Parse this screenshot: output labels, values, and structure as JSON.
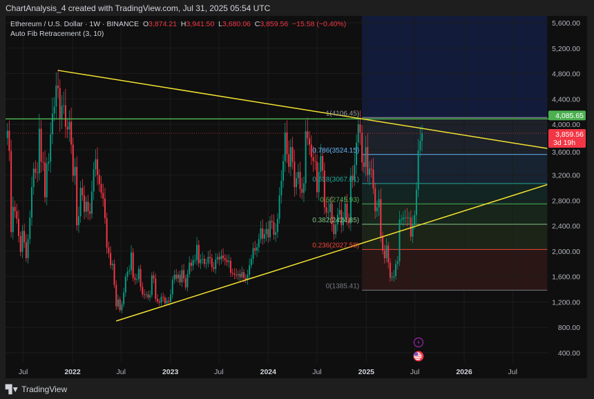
{
  "caption": "ChartAnalysis_4 created with TradingView.com, Jul 31, 2025 05:54 UTC",
  "legend": {
    "symbol": "Ethereum / U.S. Dollar · 1W · BINANCE",
    "o_label": "O",
    "o": "3,874.21",
    "h_label": "H",
    "h": "3,941.50",
    "l_label": "L",
    "l": "3,680.06",
    "c_label": "C",
    "c": "3,859.56",
    "change": "−15.58 (−0.40%)",
    "indicator": "Auto Fib Retracement (3, 10)"
  },
  "footer": {
    "brand": "TradingView",
    "logo_text": "17"
  },
  "colors": {
    "up": "#089981",
    "down": "#f23645",
    "trendline": "#f5e431",
    "resistance": "#4caf50",
    "price_badge": "#f23645",
    "level_badge": "#4caf50"
  },
  "chart_data": {
    "type": "candlestick",
    "interval": "1W",
    "ylim": [
      300,
      5700
    ],
    "y_ticks": [
      "5,600.00",
      "5,200.00",
      "4,800.00",
      "4,400.00",
      "4,000.00",
      "3,600.00",
      "3,200.00",
      "2,800.00",
      "2,400.00",
      "2,000.00",
      "1,600.00",
      "1,200.00",
      "800.00",
      "400.00"
    ],
    "y_tick_values": [
      5600,
      5200,
      4800,
      4400,
      4000,
      3600,
      3200,
      2800,
      2400,
      2000,
      1600,
      1200,
      800,
      400
    ],
    "x_ticks": [
      {
        "label": "Jul",
        "date": "2021-07-01",
        "bold": false
      },
      {
        "label": "2022",
        "date": "2022-01-01",
        "bold": true
      },
      {
        "label": "Jul",
        "date": "2022-07-01",
        "bold": false
      },
      {
        "label": "2023",
        "date": "2023-01-01",
        "bold": true
      },
      {
        "label": "Jul",
        "date": "2023-07-01",
        "bold": false
      },
      {
        "label": "2024",
        "date": "2024-01-01",
        "bold": true
      },
      {
        "label": "Jul",
        "date": "2024-07-01",
        "bold": false
      },
      {
        "label": "2025",
        "date": "2025-01-01",
        "bold": true
      },
      {
        "label": "Jul",
        "date": "2025-07-01",
        "bold": false
      },
      {
        "label": "2026",
        "date": "2026-01-01",
        "bold": true
      },
      {
        "label": "Jul",
        "date": "2026-07-01",
        "bold": false
      }
    ],
    "grid": true,
    "last_price": {
      "value": 3859.56,
      "label": "3,859.56",
      "countdown": "3d 19h"
    },
    "resistance_level": {
      "value": 4085.65,
      "label": "4,085.65"
    },
    "trendlines": [
      {
        "from": [
          "2021-11-08",
          4850
        ],
        "to": [
          "2026-11-07",
          3620
        ]
      },
      {
        "from": [
          "2022-06-13",
          900
        ],
        "to": [
          "2026-11-07",
          3050
        ]
      }
    ],
    "fib": {
      "from_date": "2024-12-16",
      "to_date": "2026-11-07",
      "levels": [
        {
          "ratio": "1",
          "price": 4106.45,
          "label": "1(4106.45)",
          "color": "#9598a1",
          "fill": "#1a1d2e"
        },
        {
          "ratio": "0.786",
          "price": 3524.15,
          "label": "0.786(3524.15)",
          "color": "#64b5f6",
          "fill": "#1d2129"
        },
        {
          "ratio": "0.618",
          "price": 3067.01,
          "label": "0.618(3067.01)",
          "color": "#26a69a",
          "fill": "#172330"
        },
        {
          "ratio": "0.5",
          "price": 2745.93,
          "label": "0.5(2745.93)",
          "color": "#4caf50",
          "fill": "#132522"
        },
        {
          "ratio": "0.382",
          "price": 2424.85,
          "label": "0.382(2424.85)",
          "color": "#81c784",
          "fill": "#17251a"
        },
        {
          "ratio": "0.236",
          "price": 2027.58,
          "label": "0.236(2027.58)",
          "color": "#f44336",
          "fill": "#1c2418"
        },
        {
          "ratio": "0",
          "price": 1385.41,
          "label": "0(1385.41)",
          "color": "#787b86",
          "fill": "#2b1616"
        }
      ],
      "extension_fill": "#121b3a"
    },
    "closes": [
      [
        "2021-05-03",
        3900
      ],
      [
        "2021-05-10",
        3580
      ],
      [
        "2021-05-17",
        2300
      ],
      [
        "2021-05-24",
        2700
      ],
      [
        "2021-05-31",
        2630
      ],
      [
        "2021-06-07",
        2510
      ],
      [
        "2021-06-14",
        2240
      ],
      [
        "2021-06-21",
        1990
      ],
      [
        "2021-06-28",
        2320
      ],
      [
        "2021-07-05",
        2140
      ],
      [
        "2021-07-12",
        1890
      ],
      [
        "2021-07-19",
        2190
      ],
      [
        "2021-07-26",
        2530
      ],
      [
        "2021-08-02",
        3010
      ],
      [
        "2021-08-09",
        3300
      ],
      [
        "2021-08-16",
        3240
      ],
      [
        "2021-08-23",
        3230
      ],
      [
        "2021-08-30",
        3930
      ],
      [
        "2021-09-06",
        3410
      ],
      [
        "2021-09-13",
        3400
      ],
      [
        "2021-09-20",
        2850
      ],
      [
        "2021-09-27",
        3380
      ],
      [
        "2021-10-04",
        3410
      ],
      [
        "2021-10-11",
        3840
      ],
      [
        "2021-10-18",
        4170
      ],
      [
        "2021-10-25",
        4280
      ],
      [
        "2021-11-01",
        4610
      ],
      [
        "2021-11-08",
        4570
      ],
      [
        "2021-11-15",
        4090
      ],
      [
        "2021-11-22",
        4290
      ],
      [
        "2021-11-29",
        4300
      ],
      [
        "2021-12-06",
        3960
      ],
      [
        "2021-12-13",
        3920
      ],
      [
        "2021-12-20",
        4040
      ],
      [
        "2021-12-27",
        3680
      ],
      [
        "2022-01-03",
        3190
      ],
      [
        "2022-01-10",
        3330
      ],
      [
        "2022-01-17",
        2410
      ],
      [
        "2022-01-24",
        2550
      ],
      [
        "2022-01-31",
        3000
      ],
      [
        "2022-02-07",
        2880
      ],
      [
        "2022-02-14",
        2620
      ],
      [
        "2022-02-21",
        2780
      ],
      [
        "2022-02-28",
        2630
      ],
      [
        "2022-03-07",
        2590
      ],
      [
        "2022-03-14",
        2940
      ],
      [
        "2022-03-21",
        3290
      ],
      [
        "2022-03-28",
        3450
      ],
      [
        "2022-04-04",
        3200
      ],
      [
        "2022-04-11",
        3060
      ],
      [
        "2022-04-18",
        2920
      ],
      [
        "2022-04-25",
        2830
      ],
      [
        "2022-05-02",
        2520
      ],
      [
        "2022-05-09",
        2060
      ],
      [
        "2022-05-16",
        1970
      ],
      [
        "2022-05-23",
        1780
      ],
      [
        "2022-05-30",
        1800
      ],
      [
        "2022-06-06",
        1470
      ],
      [
        "2022-06-13",
        1130
      ],
      [
        "2022-06-20",
        1240
      ],
      [
        "2022-06-27",
        1070
      ],
      [
        "2022-07-04",
        1160
      ],
      [
        "2022-07-11",
        1350
      ],
      [
        "2022-07-18",
        1600
      ],
      [
        "2022-07-25",
        1680
      ],
      [
        "2022-08-01",
        1700
      ],
      [
        "2022-08-08",
        1980
      ],
      [
        "2022-08-15",
        1580
      ],
      [
        "2022-08-22",
        1550
      ],
      [
        "2022-08-29",
        1560
      ],
      [
        "2022-09-05",
        1720
      ],
      [
        "2022-09-12",
        1440
      ],
      [
        "2022-09-19",
        1320
      ],
      [
        "2022-09-26",
        1310
      ],
      [
        "2022-10-03",
        1320
      ],
      [
        "2022-10-10",
        1270
      ],
      [
        "2022-10-17",
        1310
      ],
      [
        "2022-10-24",
        1620
      ],
      [
        "2022-10-31",
        1570
      ],
      [
        "2022-11-07",
        1250
      ],
      [
        "2022-11-14",
        1210
      ],
      [
        "2022-11-21",
        1190
      ],
      [
        "2022-11-28",
        1280
      ],
      [
        "2022-12-05",
        1270
      ],
      [
        "2022-12-12",
        1180
      ],
      [
        "2022-12-19",
        1220
      ],
      [
        "2022-12-26",
        1200
      ],
      [
        "2023-01-02",
        1320
      ],
      [
        "2023-01-09",
        1550
      ],
      [
        "2023-01-16",
        1630
      ],
      [
        "2023-01-23",
        1570
      ],
      [
        "2023-01-30",
        1630
      ],
      [
        "2023-02-06",
        1510
      ],
      [
        "2023-02-13",
        1700
      ],
      [
        "2023-02-20",
        1570
      ],
      [
        "2023-02-27",
        1430
      ],
      [
        "2023-03-06",
        1640
      ],
      [
        "2023-03-13",
        1820
      ],
      [
        "2023-03-20",
        1770
      ],
      [
        "2023-03-27",
        1860
      ],
      [
        "2023-04-03",
        1860
      ],
      [
        "2023-04-10",
        2100
      ],
      [
        "2023-04-17",
        1810
      ],
      [
        "2023-04-24",
        1870
      ],
      [
        "2023-05-01",
        1880
      ],
      [
        "2023-05-08",
        1800
      ],
      [
        "2023-05-15",
        1810
      ],
      [
        "2023-05-22",
        1910
      ],
      [
        "2023-05-29",
        1890
      ],
      [
        "2023-06-05",
        1750
      ],
      [
        "2023-06-12",
        1720
      ],
      [
        "2023-06-19",
        1870
      ],
      [
        "2023-06-26",
        1910
      ],
      [
        "2023-07-03",
        1870
      ],
      [
        "2023-07-10",
        1930
      ],
      [
        "2023-07-17",
        1890
      ],
      [
        "2023-07-24",
        1860
      ],
      [
        "2023-07-31",
        1830
      ],
      [
        "2023-08-07",
        1850
      ],
      [
        "2023-08-14",
        1660
      ],
      [
        "2023-08-21",
        1650
      ],
      [
        "2023-08-28",
        1630
      ],
      [
        "2023-09-04",
        1620
      ],
      [
        "2023-09-11",
        1640
      ],
      [
        "2023-09-18",
        1590
      ],
      [
        "2023-09-25",
        1670
      ],
      [
        "2023-10-02",
        1580
      ],
      [
        "2023-10-09",
        1550
      ],
      [
        "2023-10-16",
        1630
      ],
      [
        "2023-10-23",
        1780
      ],
      [
        "2023-10-30",
        1880
      ],
      [
        "2023-11-06",
        2050
      ],
      [
        "2023-11-13",
        2010
      ],
      [
        "2023-11-20",
        2060
      ],
      [
        "2023-11-27",
        2190
      ],
      [
        "2023-12-04",
        2360
      ],
      [
        "2023-12-11",
        2200
      ],
      [
        "2023-12-18",
        2270
      ],
      [
        "2023-12-25",
        2350
      ],
      [
        "2024-01-01",
        2220
      ],
      [
        "2024-01-08",
        2480
      ],
      [
        "2024-01-15",
        2460
      ],
      [
        "2024-01-22",
        2260
      ],
      [
        "2024-01-29",
        2300
      ],
      [
        "2024-02-05",
        2510
      ],
      [
        "2024-02-12",
        2880
      ],
      [
        "2024-02-19",
        3110
      ],
      [
        "2024-02-26",
        3420
      ],
      [
        "2024-03-04",
        3870
      ],
      [
        "2024-03-11",
        3530
      ],
      [
        "2024-03-18",
        3330
      ],
      [
        "2024-03-25",
        3640
      ],
      [
        "2024-04-01",
        3410
      ],
      [
        "2024-04-08",
        3010
      ],
      [
        "2024-04-15",
        3150
      ],
      [
        "2024-04-22",
        3250
      ],
      [
        "2024-04-29",
        2980
      ],
      [
        "2024-05-06",
        2920
      ],
      [
        "2024-05-13",
        3070
      ],
      [
        "2024-05-20",
        3890
      ],
      [
        "2024-05-27",
        3780
      ],
      [
        "2024-06-03",
        3680
      ],
      [
        "2024-06-10",
        3480
      ],
      [
        "2024-06-17",
        3420
      ],
      [
        "2024-06-24",
        3410
      ],
      [
        "2024-07-01",
        2930
      ],
      [
        "2024-07-08",
        3250
      ],
      [
        "2024-07-15",
        3500
      ],
      [
        "2024-07-22",
        3270
      ],
      [
        "2024-07-29",
        2690
      ],
      [
        "2024-08-05",
        2610
      ],
      [
        "2024-08-12",
        2620
      ],
      [
        "2024-08-19",
        2750
      ],
      [
        "2024-08-26",
        2430
      ],
      [
        "2024-09-02",
        2270
      ],
      [
        "2024-09-09",
        2420
      ],
      [
        "2024-09-16",
        2580
      ],
      [
        "2024-09-23",
        2650
      ],
      [
        "2024-09-30",
        2410
      ],
      [
        "2024-10-07",
        2530
      ],
      [
        "2024-10-14",
        2750
      ],
      [
        "2024-10-21",
        2520
      ],
      [
        "2024-10-28",
        2440
      ],
      [
        "2024-11-04",
        3190
      ],
      [
        "2024-11-11",
        3120
      ],
      [
        "2024-11-18",
        3360
      ],
      [
        "2024-11-25",
        3710
      ],
      [
        "2024-12-02",
        4000
      ],
      [
        "2024-12-09",
        3870
      ],
      [
        "2024-12-16",
        3400
      ],
      [
        "2024-12-23",
        3330
      ],
      [
        "2024-12-30",
        3640
      ],
      [
        "2025-01-06",
        3200
      ],
      [
        "2025-01-13",
        3300
      ],
      [
        "2025-01-20",
        3290
      ],
      [
        "2025-01-27",
        2990
      ],
      [
        "2025-02-03",
        2630
      ],
      [
        "2025-02-10",
        2690
      ],
      [
        "2025-02-17",
        2820
      ],
      [
        "2025-02-24",
        2230
      ],
      [
        "2025-03-03",
        2010
      ],
      [
        "2025-03-10",
        1890
      ],
      [
        "2025-03-17",
        2090
      ],
      [
        "2025-03-24",
        1820
      ],
      [
        "2025-03-31",
        1580
      ],
      [
        "2025-04-07",
        1590
      ],
      [
        "2025-04-14",
        1610
      ],
      [
        "2025-04-21",
        1800
      ],
      [
        "2025-04-28",
        1840
      ],
      [
        "2025-05-05",
        2500
      ],
      [
        "2025-05-12",
        2500
      ],
      [
        "2025-05-19",
        2530
      ],
      [
        "2025-05-26",
        2530
      ],
      [
        "2025-06-02",
        2520
      ],
      [
        "2025-06-09",
        2530
      ],
      [
        "2025-06-16",
        2230
      ],
      [
        "2025-06-23",
        2430
      ],
      [
        "2025-06-30",
        2570
      ],
      [
        "2025-07-07",
        2970
      ],
      [
        "2025-07-14",
        3590
      ],
      [
        "2025-07-21",
        3740
      ],
      [
        "2025-07-28",
        3859.56
      ]
    ]
  }
}
